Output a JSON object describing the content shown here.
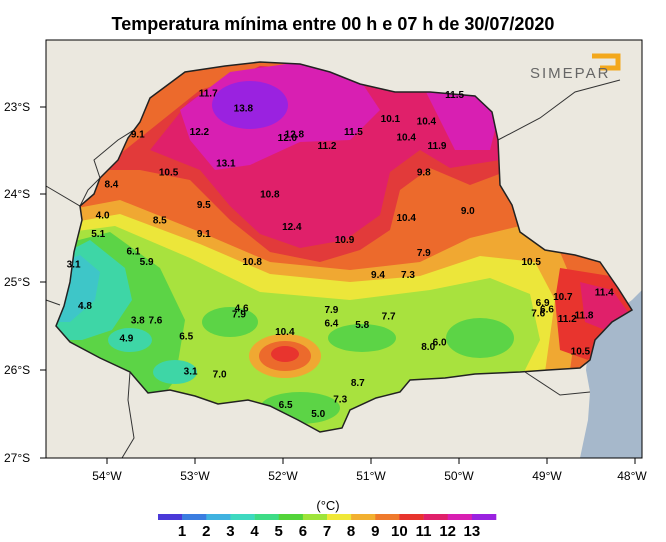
{
  "title": "Temperatura mínima entre 00 h e 07 h de 30/07/2020",
  "logo": {
    "text": "SIMEPAR",
    "accent_color": "#f3a81c"
  },
  "lat_labels": [
    "23°S",
    "24°S",
    "25°S",
    "26°S",
    "27°S"
  ],
  "lon_labels": [
    "54°W",
    "53°W",
    "52°W",
    "51°W",
    "50°W",
    "49°W",
    "48°W"
  ],
  "colorbar": {
    "unit": "(°C)",
    "ticks": [
      "1",
      "2",
      "3",
      "4",
      "5",
      "6",
      "7",
      "8",
      "9",
      "10",
      "11",
      "12",
      "13"
    ],
    "colors": [
      "#4a39d8",
      "#3b7de0",
      "#3fb2e0",
      "#3ed9c0",
      "#3ddc86",
      "#53d43a",
      "#9ee43a",
      "#f0e838",
      "#f2b030",
      "#ef7a2c",
      "#e8342e",
      "#e0206a",
      "#d81fb2",
      "#9a22e0"
    ]
  },
  "stations": [
    {
      "label": "11.7",
      "lon": -52.85,
      "lat": -22.88
    },
    {
      "label": "13.8",
      "lon": -52.45,
      "lat": -23.05
    },
    {
      "label": "12.2",
      "lon": -52.95,
      "lat": -23.32
    },
    {
      "label": "12.8",
      "lon": -51.87,
      "lat": -23.35
    },
    {
      "label": "12.0",
      "lon": -51.95,
      "lat": -23.39
    },
    {
      "label": "11.5",
      "lon": -51.2,
      "lat": -23.32
    },
    {
      "label": "10.1",
      "lon": -50.78,
      "lat": -23.17
    },
    {
      "label": "10.4",
      "lon": -50.37,
      "lat": -23.2
    },
    {
      "label": "11.5",
      "lon": -50.05,
      "lat": -22.9
    },
    {
      "label": "9.1",
      "lon": -53.65,
      "lat": -23.35
    },
    {
      "label": "11.2",
      "lon": -51.5,
      "lat": -23.48
    },
    {
      "label": "10.4",
      "lon": -50.6,
      "lat": -23.38
    },
    {
      "label": "11.9",
      "lon": -50.25,
      "lat": -23.48
    },
    {
      "label": "13.1",
      "lon": -52.65,
      "lat": -23.68
    },
    {
      "label": "10.5",
      "lon": -53.3,
      "lat": -23.78
    },
    {
      "label": "9.8",
      "lon": -50.4,
      "lat": -23.78
    },
    {
      "label": "8.4",
      "lon": -53.95,
      "lat": -23.92
    },
    {
      "label": "10.8",
      "lon": -52.15,
      "lat": -24.03
    },
    {
      "label": "9.5",
      "lon": -52.9,
      "lat": -24.15
    },
    {
      "label": "9.0",
      "lon": -49.9,
      "lat": -24.22
    },
    {
      "label": "4.0",
      "lon": -54.05,
      "lat": -24.27
    },
    {
      "label": "8.5",
      "lon": -53.4,
      "lat": -24.33
    },
    {
      "label": "10.4",
      "lon": -50.6,
      "lat": -24.3
    },
    {
      "label": "12.4",
      "lon": -51.9,
      "lat": -24.4
    },
    {
      "label": "9.1",
      "lon": -52.9,
      "lat": -24.48
    },
    {
      "label": "5.1",
      "lon": -54.1,
      "lat": -24.48
    },
    {
      "label": "10.9",
      "lon": -51.3,
      "lat": -24.55
    },
    {
      "label": "7.9",
      "lon": -50.4,
      "lat": -24.7
    },
    {
      "label": "6.1",
      "lon": -53.7,
      "lat": -24.68
    },
    {
      "label": "5.9",
      "lon": -53.55,
      "lat": -24.8
    },
    {
      "label": "10.8",
      "lon": -52.35,
      "lat": -24.8
    },
    {
      "label": "10.5",
      "lon": -49.18,
      "lat": -24.8
    },
    {
      "label": "3.1",
      "lon": -54.38,
      "lat": -24.83
    },
    {
      "label": "9.4",
      "lon": -50.92,
      "lat": -24.95
    },
    {
      "label": "7.3",
      "lon": -50.58,
      "lat": -24.95
    },
    {
      "label": "10.7",
      "lon": -48.82,
      "lat": -25.2
    },
    {
      "label": "11.4",
      "lon": -48.35,
      "lat": -25.15
    },
    {
      "label": "4.8",
      "lon": -54.25,
      "lat": -25.3
    },
    {
      "label": "6.9",
      "lon": -49.05,
      "lat": -25.27
    },
    {
      "label": "4.6",
      "lon": -52.47,
      "lat": -25.33
    },
    {
      "label": "7.9",
      "lon": -52.5,
      "lat": -25.4
    },
    {
      "label": "7.9",
      "lon": -51.45,
      "lat": -25.35
    },
    {
      "label": "7.6",
      "lon": -49.1,
      "lat": -25.39
    },
    {
      "label": "6.6",
      "lon": -49.0,
      "lat": -25.34
    },
    {
      "label": "7.7",
      "lon": -50.8,
      "lat": -25.42
    },
    {
      "label": "11.2",
      "lon": -48.77,
      "lat": -25.45
    },
    {
      "label": "11.8",
      "lon": -48.58,
      "lat": -25.41
    },
    {
      "label": "3.8",
      "lon": -53.65,
      "lat": -25.47
    },
    {
      "label": "7.6",
      "lon": -53.45,
      "lat": -25.47
    },
    {
      "label": "6.4",
      "lon": -51.45,
      "lat": -25.5
    },
    {
      "label": "5.8",
      "lon": -51.1,
      "lat": -25.52
    },
    {
      "label": "10.4",
      "lon": -51.98,
      "lat": -25.6
    },
    {
      "label": "6.5",
      "lon": -53.1,
      "lat": -25.65
    },
    {
      "label": "4.9",
      "lon": -53.78,
      "lat": -25.67
    },
    {
      "label": "6.0",
      "lon": -50.22,
      "lat": -25.72
    },
    {
      "label": "8.0",
      "lon": -50.35,
      "lat": -25.77
    },
    {
      "label": "10.5",
      "lon": -48.62,
      "lat": -25.82
    },
    {
      "label": "3.1",
      "lon": -53.05,
      "lat": -26.05
    },
    {
      "label": "7.0",
      "lon": -52.72,
      "lat": -26.08
    },
    {
      "label": "8.7",
      "lon": -51.15,
      "lat": -26.18
    },
    {
      "label": "7.3",
      "lon": -51.35,
      "lat": -26.37
    },
    {
      "label": "6.5",
      "lon": -51.97,
      "lat": -26.43
    },
    {
      "label": "5.0",
      "lon": -51.6,
      "lat": -26.53
    }
  ]
}
